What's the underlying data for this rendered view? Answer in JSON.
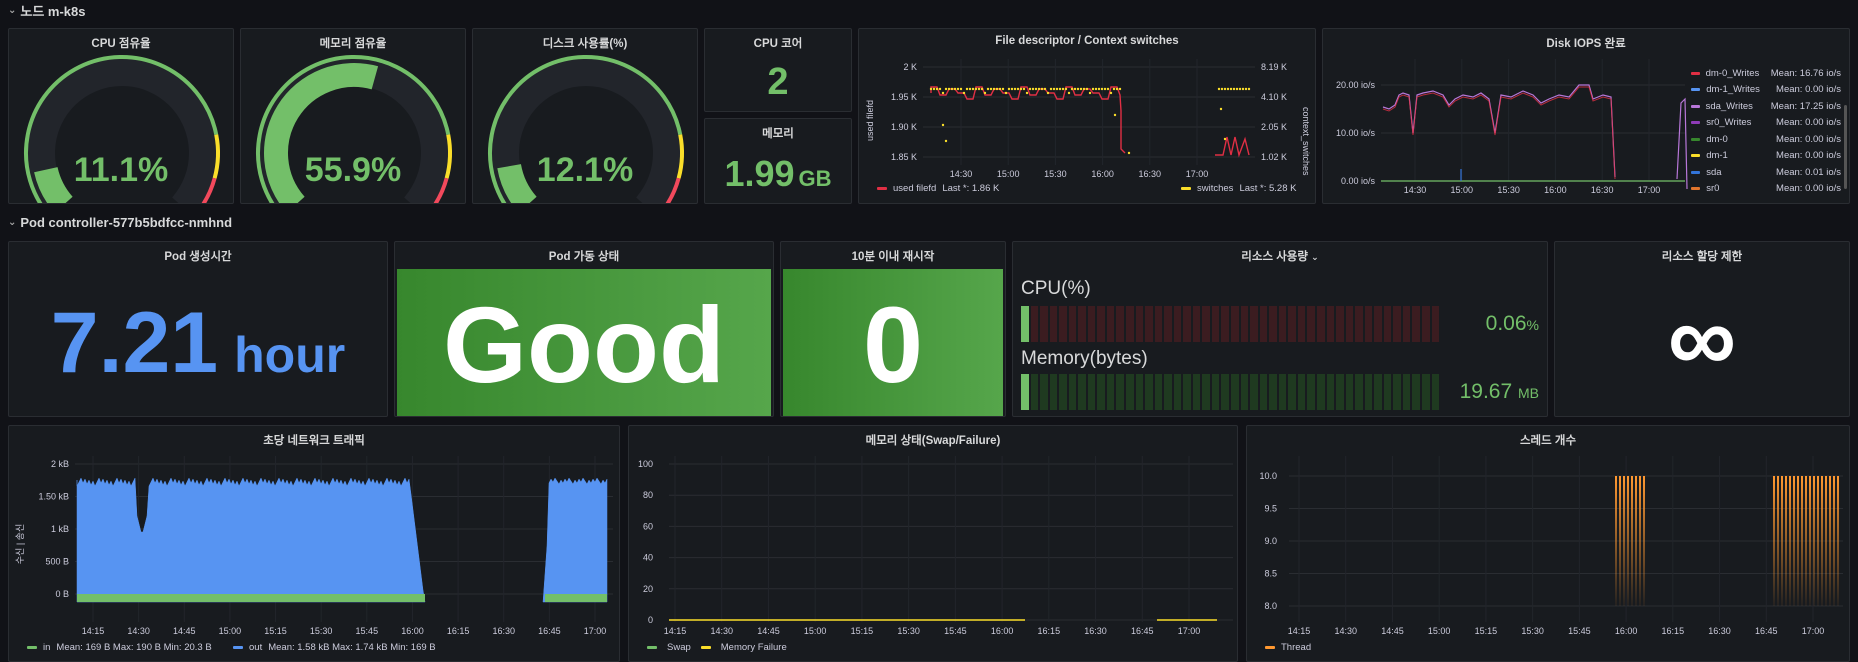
{
  "rows": {
    "node": "노드 m-k8s",
    "pod": "Pod controller-577b5bdfcc-nmhnd"
  },
  "gauges": [
    {
      "title": "CPU 점유율",
      "value": "11.1%",
      "fraction": 0.111
    },
    {
      "title": "메모리 점유율",
      "value": "55.9%",
      "fraction": 0.559
    },
    {
      "title": "디스크 사용률(%)",
      "value": "12.1%",
      "fraction": 0.121
    }
  ],
  "cpu_cores": {
    "title": "CPU 코어",
    "value": "2"
  },
  "memory": {
    "title": "메모리",
    "value": "1.99",
    "unit": "GB"
  },
  "fd_panel": {
    "title": "File descriptor / Context switches",
    "y_left_label": "used filefd",
    "y_right_label": "context_switches",
    "y_left_ticks": [
      "2 K",
      "1.95 K",
      "1.90 K",
      "1.85 K"
    ],
    "y_right_ticks": [
      "8.19 K",
      "4.10 K",
      "2.05 K",
      "1.02 K"
    ],
    "x_ticks": [
      "14:30",
      "15:00",
      "15:30",
      "16:00",
      "16:30",
      "17:00"
    ],
    "legend": [
      {
        "name": "used filefd",
        "stat": "Last *: 1.86 K",
        "color": "#e02f44"
      },
      {
        "name": "switches",
        "stat": "Last *: 5.28 K",
        "color": "#fade2a"
      }
    ]
  },
  "iops_panel": {
    "title": "Disk IOPS 완료",
    "y_ticks": [
      "20.00 io/s",
      "10.00 io/s",
      "0.00 io/s"
    ],
    "x_ticks": [
      "14:30",
      "15:00",
      "15:30",
      "16:00",
      "16:30",
      "17:00"
    ],
    "legend": [
      {
        "name": "dm-0_Writes",
        "stat": "Mean: 16.76 io/s",
        "color": "#e02f44"
      },
      {
        "name": "dm-1_Writes",
        "stat": "Mean: 0.00 io/s",
        "color": "#5794f2"
      },
      {
        "name": "sda_Writes",
        "stat": "Mean: 17.25 io/s",
        "color": "#b877d9"
      },
      {
        "name": "sr0_Writes",
        "stat": "Mean: 0.00 io/s",
        "color": "#8f3bb8"
      },
      {
        "name": "dm-0",
        "stat": "Mean: 0.00 io/s",
        "color": "#37872d"
      },
      {
        "name": "dm-1",
        "stat": "Mean: 0.00 io/s",
        "color": "#fade2a"
      },
      {
        "name": "sda",
        "stat": "Mean: 0.01 io/s",
        "color": "#3274d9"
      },
      {
        "name": "sr0",
        "stat": "Mean: 0.00 io/s",
        "color": "#e0752d"
      }
    ]
  },
  "pod_age": {
    "title": "Pod 생성시간",
    "value": "7.21",
    "unit": "hour"
  },
  "pod_status": {
    "title": "Pod 가동 상태",
    "value": "Good"
  },
  "restarts": {
    "title": "10분 이내 재시작",
    "value": "0"
  },
  "resources": {
    "title": "리소스 사용량",
    "cpu_label": "CPU(%)",
    "cpu_value": "0.06",
    "cpu_unit": "%",
    "cpu_fraction": 0.0006,
    "mem_label": "Memory(bytes)",
    "mem_value": "19.67",
    "mem_unit": "MB",
    "mem_fraction": 0.02
  },
  "limits": {
    "title": "리소스 할당 제한",
    "value": "∞"
  },
  "network": {
    "title": "초당 네트워크 트래픽",
    "y_label": "수신 | 송신",
    "y_ticks": [
      "2 kB",
      "1.50 kB",
      "1 kB",
      "500 B",
      "0 B"
    ],
    "x_ticks": [
      "14:15",
      "14:30",
      "14:45",
      "15:00",
      "15:15",
      "15:30",
      "15:45",
      "16:00",
      "16:15",
      "16:30",
      "16:45",
      "17:00"
    ],
    "legend": [
      {
        "name": "in",
        "stat": "Mean: 169 B  Max: 190 B  Min: 20.3 B",
        "color": "#73bf69"
      },
      {
        "name": "out",
        "stat": "Mean: 1.58 kB  Max: 1.74 kB  Min: 169 B",
        "color": "#5794f2"
      }
    ]
  },
  "mem_state": {
    "title": "메모리 상태(Swap/Failure)",
    "y_ticks": [
      "100",
      "80",
      "60",
      "40",
      "20",
      "0"
    ],
    "x_ticks": [
      "14:15",
      "14:30",
      "14:45",
      "15:00",
      "15:15",
      "15:30",
      "15:45",
      "16:00",
      "16:15",
      "16:30",
      "16:45",
      "17:00"
    ],
    "legend": [
      {
        "name": "Swap",
        "color": "#73bf69"
      },
      {
        "name": "Memory Failure",
        "color": "#fade2a"
      }
    ]
  },
  "threads": {
    "title": "스레드 개수",
    "y_ticks": [
      "10.0",
      "9.5",
      "9.0",
      "8.5",
      "8.0"
    ],
    "x_ticks": [
      "14:15",
      "14:30",
      "14:45",
      "15:00",
      "15:15",
      "15:30",
      "15:45",
      "16:00",
      "16:15",
      "16:30",
      "16:45",
      "17:00"
    ],
    "legend": [
      {
        "name": "Thread",
        "color": "#ff9830"
      }
    ]
  },
  "colors": {
    "green": "#73bf69",
    "blue": "#5794f2",
    "red": "#e02f44",
    "yellow": "#fade2a",
    "orange": "#ff9830"
  }
}
